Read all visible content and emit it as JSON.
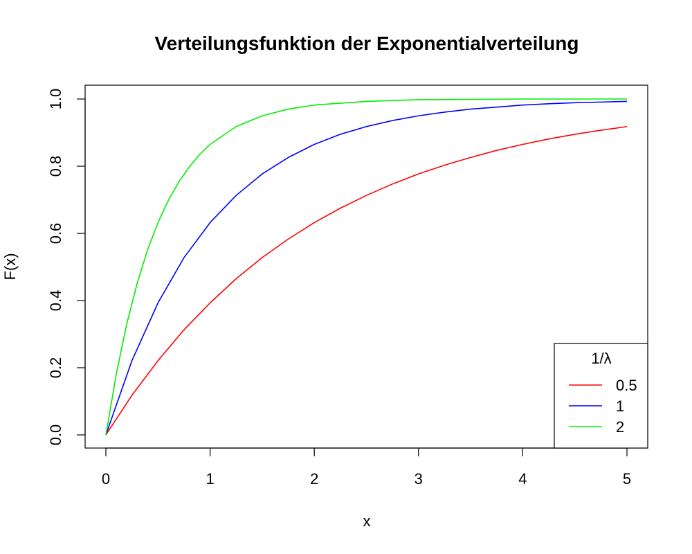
{
  "chart_data": {
    "type": "line",
    "title": "Verteilungsfunktion der Exponentialverteilung",
    "xlabel": "x",
    "ylabel": "F(x)",
    "xlim": [
      0,
      5
    ],
    "ylim": [
      0,
      1
    ],
    "x_ticks": [
      "0",
      "1",
      "2",
      "3",
      "4",
      "5"
    ],
    "y_ticks": [
      "0.0",
      "0.2",
      "0.4",
      "0.6",
      "0.8",
      "1.0"
    ],
    "grid": false,
    "legend": {
      "title": "1/λ",
      "placement": "bottom-right"
    },
    "series": [
      {
        "name": "0.5",
        "color": "#ff0000",
        "x": [
          0,
          0.25,
          0.5,
          0.75,
          1,
          1.25,
          1.5,
          1.75,
          2,
          2.25,
          2.5,
          2.75,
          3,
          3.25,
          3.5,
          3.75,
          4,
          4.25,
          4.5,
          4.75,
          5
        ],
        "values": [
          0,
          0.118,
          0.221,
          0.313,
          0.393,
          0.465,
          0.528,
          0.583,
          0.632,
          0.675,
          0.713,
          0.747,
          0.777,
          0.803,
          0.826,
          0.847,
          0.865,
          0.881,
          0.895,
          0.907,
          0.918
        ]
      },
      {
        "name": "1",
        "color": "#0000ff",
        "x": [
          0,
          0.25,
          0.5,
          0.75,
          1,
          1.25,
          1.5,
          1.75,
          2,
          2.25,
          2.5,
          2.75,
          3,
          3.25,
          3.5,
          3.75,
          4,
          4.25,
          4.5,
          4.75,
          5
        ],
        "values": [
          0,
          0.221,
          0.393,
          0.528,
          0.632,
          0.713,
          0.777,
          0.826,
          0.865,
          0.895,
          0.918,
          0.936,
          0.95,
          0.961,
          0.97,
          0.976,
          0.982,
          0.986,
          0.989,
          0.991,
          0.993
        ]
      },
      {
        "name": "2",
        "color": "#00ee00",
        "x": [
          0,
          0.1,
          0.2,
          0.3,
          0.4,
          0.5,
          0.6,
          0.7,
          0.8,
          0.9,
          1,
          1.25,
          1.5,
          1.75,
          2,
          2.5,
          3,
          3.5,
          4,
          4.5,
          5
        ],
        "values": [
          0,
          0.181,
          0.33,
          0.451,
          0.551,
          0.632,
          0.699,
          0.753,
          0.798,
          0.835,
          0.865,
          0.918,
          0.95,
          0.97,
          0.982,
          0.993,
          0.998,
          0.999,
          1.0,
          1.0,
          1.0
        ]
      }
    ]
  }
}
